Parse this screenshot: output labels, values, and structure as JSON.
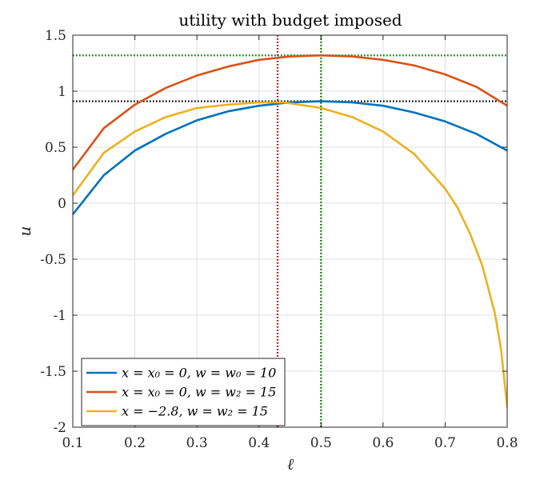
{
  "chart_data": {
    "type": "line",
    "title": "utility with budget imposed",
    "xlabel": "ℓ",
    "ylabel": "u",
    "xlim": [
      0.1,
      0.8
    ],
    "ylim": [
      -2,
      1.5
    ],
    "xticks": [
      0.1,
      0.2,
      0.3,
      0.4,
      0.5,
      0.6,
      0.7,
      0.8
    ],
    "xtick_labels": [
      "0.1",
      "0.2",
      "0.3",
      "0.4",
      "0.5",
      "0.6",
      "0.7",
      "0.8"
    ],
    "yticks": [
      -2,
      -1.5,
      -1,
      -0.5,
      0,
      0.5,
      1,
      1.5
    ],
    "ytick_labels": [
      "-2",
      "-1.5",
      "-1",
      "-0.5",
      "0",
      "0.5",
      "1",
      "1.5"
    ],
    "grid": true,
    "legend_position": "bottom-left",
    "series": [
      {
        "name": "x = x₀ = 0, w = w₀ = 10",
        "color": "#0072BD",
        "x": [
          0.1,
          0.15,
          0.2,
          0.25,
          0.3,
          0.35,
          0.4,
          0.45,
          0.5,
          0.55,
          0.6,
          0.65,
          0.7,
          0.75,
          0.8
        ],
        "y": [
          -0.1,
          0.25,
          0.47,
          0.62,
          0.74,
          0.82,
          0.87,
          0.9,
          0.91,
          0.9,
          0.87,
          0.81,
          0.73,
          0.62,
          0.47
        ]
      },
      {
        "name": "x = x₀ = 0, w = w₂ = 15",
        "color": "#D95319",
        "x": [
          0.1,
          0.15,
          0.2,
          0.25,
          0.3,
          0.35,
          0.4,
          0.45,
          0.5,
          0.55,
          0.6,
          0.65,
          0.7,
          0.75,
          0.8
        ],
        "y": [
          0.3,
          0.67,
          0.88,
          1.03,
          1.14,
          1.22,
          1.28,
          1.31,
          1.32,
          1.31,
          1.28,
          1.23,
          1.15,
          1.04,
          0.87
        ]
      },
      {
        "name": "x = −2.8, w = w₂ = 15",
        "color": "#EDB120",
        "x": [
          0.1,
          0.15,
          0.2,
          0.25,
          0.3,
          0.35,
          0.4,
          0.44,
          0.5,
          0.55,
          0.6,
          0.65,
          0.7,
          0.72,
          0.74,
          0.76,
          0.78,
          0.79,
          0.8
        ],
        "y": [
          0.07,
          0.45,
          0.64,
          0.77,
          0.85,
          0.88,
          0.9,
          0.9,
          0.85,
          0.77,
          0.64,
          0.44,
          0.13,
          -0.04,
          -0.27,
          -0.56,
          -0.98,
          -1.3,
          -1.82
        ]
      }
    ],
    "reference_lines": [
      {
        "orientation": "horizontal",
        "value": 1.32,
        "color": "#008000",
        "style": "dotted"
      },
      {
        "orientation": "horizontal",
        "value": 0.91,
        "color": "#000000",
        "style": "dotted"
      },
      {
        "orientation": "vertical",
        "value": 0.43,
        "color": "#C00000",
        "style": "dotted"
      },
      {
        "orientation": "vertical",
        "value": 0.5,
        "color": "#008000",
        "style": "dotted"
      }
    ],
    "colors": {
      "axis": "#262626",
      "grid": "#DFDFDF",
      "background": "#FFFFFF"
    }
  }
}
